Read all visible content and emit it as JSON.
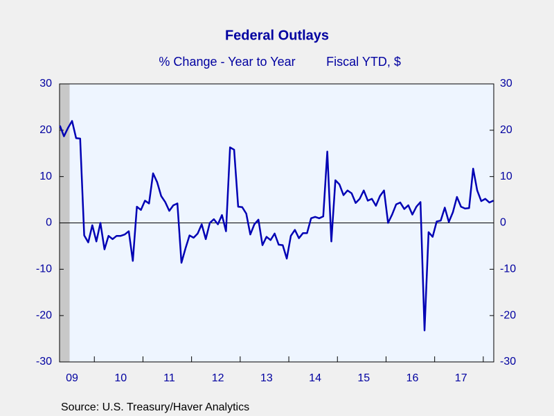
{
  "chart_data": {
    "type": "line",
    "title": "Federal Outlays",
    "subtitle": "% Change - Year to Year",
    "source": "Source:  U.S. Treasury/Haver Analytics",
    "categories": [
      null,
      null,
      null,
      "09",
      null,
      null,
      null,
      null,
      null,
      null,
      null,
      null,
      null,
      null,
      null,
      "10",
      null,
      null,
      null,
      null,
      null,
      null,
      null,
      null,
      null,
      null,
      null,
      "11",
      null,
      null,
      null,
      null,
      null,
      null,
      null,
      null,
      null,
      null,
      null,
      "12",
      null,
      null,
      null,
      null,
      null,
      null,
      null,
      null,
      null,
      null,
      null,
      "13",
      null,
      null,
      null,
      null,
      null,
      null,
      null,
      null,
      null,
      null,
      null,
      "14",
      null,
      null,
      null,
      null,
      null,
      null,
      null,
      null,
      null,
      null,
      null,
      "15",
      null,
      null,
      null,
      null,
      null,
      null,
      null,
      null,
      null,
      null,
      null,
      "16",
      null,
      null,
      null,
      null,
      null,
      null,
      null,
      null,
      null,
      null,
      null,
      "17",
      null,
      null,
      null,
      null,
      null,
      null,
      null,
      null
    ],
    "series": [
      {
        "name": "Fiscal YTD, $",
        "color": "#0000b4",
        "values": [
          21,
          18.7,
          20.5,
          22,
          18.3,
          18.2,
          -2.7,
          -4.2,
          -0.5,
          -4,
          0,
          -5.7,
          -2.8,
          -3.5,
          -2.8,
          -2.8,
          -2.5,
          -1.8,
          -8.2,
          3.5,
          2.8,
          4.8,
          4.2,
          10.7,
          8.8,
          5.8,
          4.5,
          2.6,
          3.8,
          4.2,
          -8.6,
          -5.5,
          -2.7,
          -3.2,
          -2.3,
          -0.3,
          -3.5,
          0,
          0.8,
          -0.3,
          1.7,
          -1.8,
          16.3,
          15.8,
          3.5,
          3.4,
          2,
          -2.5,
          -0.3,
          0.7,
          -4.8,
          -3,
          -3.7,
          -2.3,
          -4.7,
          -4.8,
          -7.7,
          -2.8,
          -1.5,
          -3.3,
          -2.2,
          -2.2,
          1,
          1.3,
          1,
          1.4,
          15.4,
          -4,
          9.2,
          8.3,
          6,
          7,
          6.4,
          4.3,
          5.2,
          7,
          4.8,
          5.2,
          3.7,
          5.8,
          7,
          0,
          1.8,
          4,
          4.4,
          3,
          3.8,
          1.8,
          3.5,
          4.5,
          -23.2,
          -2,
          -3,
          0.3,
          0.5,
          3.3,
          0.2,
          2.3,
          5.6,
          3.5,
          3.1,
          3.2,
          11.7,
          7,
          4.7,
          5.2,
          4.4,
          4.8
        ]
      }
    ],
    "ylim": [
      -30,
      30
    ],
    "yticks": [
      -30,
      -20,
      -10,
      0,
      10,
      20,
      30
    ],
    "y2lim": [
      -30,
      30
    ],
    "y2ticks": [
      -30,
      -20,
      -10,
      0,
      10,
      20,
      30
    ]
  }
}
